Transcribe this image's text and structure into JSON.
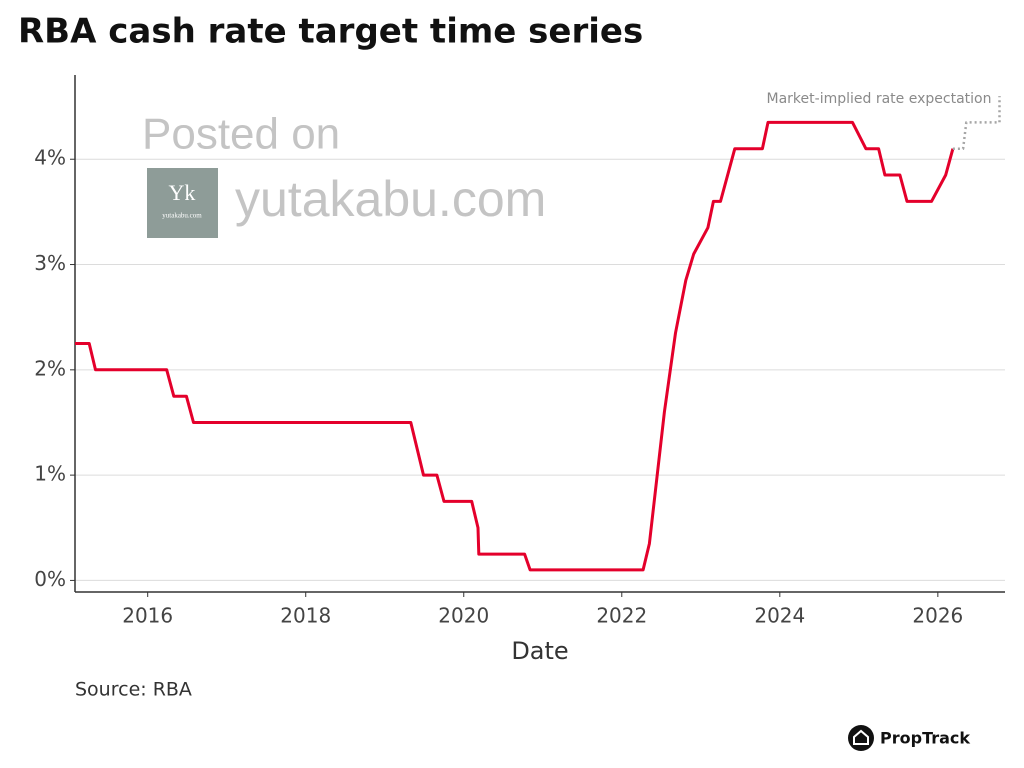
{
  "chart_data": {
    "type": "line",
    "title": "RBA cash rate target time series",
    "x_label": "Date",
    "source": "Source: RBA",
    "brand": "PropTrack",
    "watermark": {
      "line1": "Posted on",
      "site": "yutakabu.com",
      "logo_mark": "Yk",
      "logo_text": "yutakabu.com"
    },
    "xlim": [
      2015.08,
      2026.85
    ],
    "xticks": [
      2016,
      2018,
      2020,
      2022,
      2024,
      2026
    ],
    "ylim": [
      -0.11,
      4.8
    ],
    "yticks": [
      {
        "value": 0,
        "label": "0%"
      },
      {
        "value": 1,
        "label": "1%"
      },
      {
        "value": 2,
        "label": "2%"
      },
      {
        "value": 3,
        "label": "3%"
      },
      {
        "value": 4,
        "label": "4%"
      }
    ],
    "grid": true,
    "series": [
      {
        "color": "#e4002b",
        "style": "solid",
        "x": [
          2015.08,
          2015.26,
          2015.34,
          2016.24,
          2016.33,
          2016.49,
          2016.58,
          2019.33,
          2019.49,
          2019.66,
          2019.75,
          2020.1,
          2020.18,
          2020.19,
          2020.77,
          2020.84,
          2022.27,
          2022.35,
          2022.54,
          2022.68,
          2022.81,
          2022.91,
          2023.09,
          2023.16,
          2023.25,
          2023.43,
          2023.78,
          2023.85,
          2024.92,
          2025.09,
          2025.25,
          2025.33,
          2025.52,
          2025.61,
          2025.92,
          2026.1,
          2026.19
        ],
        "values": [
          2.25,
          2.25,
          2.0,
          2.0,
          1.75,
          1.75,
          1.5,
          1.5,
          1.0,
          1.0,
          0.75,
          0.75,
          0.5,
          0.25,
          0.25,
          0.1,
          0.1,
          0.35,
          1.6,
          2.35,
          2.85,
          3.1,
          3.35,
          3.6,
          3.6,
          4.1,
          4.1,
          4.35,
          4.35,
          4.1,
          4.1,
          3.85,
          3.85,
          3.6,
          3.6,
          3.85,
          4.1
        ]
      },
      {
        "name": "Market-implied rate expectation",
        "color": "#a6a6a6",
        "style": "dotted",
        "x": [
          2026.19,
          2026.32,
          2026.36,
          2026.78,
          2026.78
        ],
        "values": [
          4.1,
          4.1,
          4.35,
          4.35,
          4.6
        ]
      }
    ]
  }
}
